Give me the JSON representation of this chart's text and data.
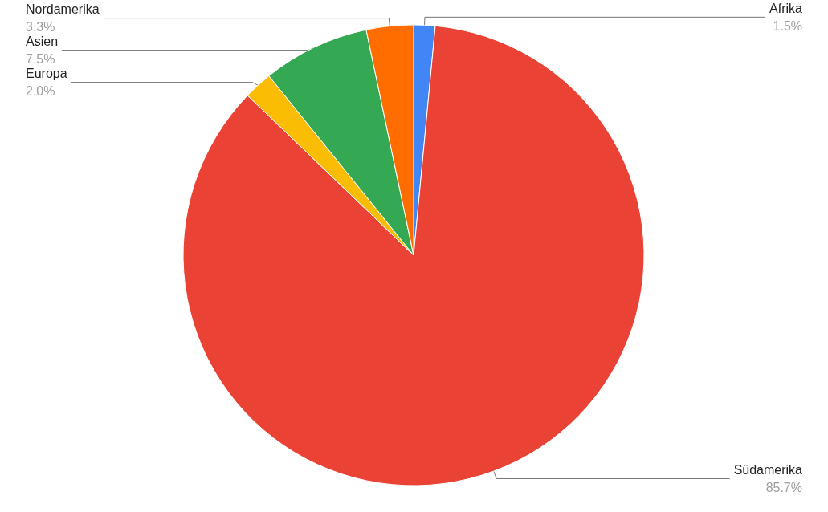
{
  "chart_data": {
    "type": "pie",
    "categories": [
      "Afrika",
      "Südamerika",
      "Europa",
      "Asien",
      "Nordamerika"
    ],
    "values": [
      1.5,
      85.7,
      2.0,
      7.5,
      3.3
    ],
    "value_labels": [
      "1.5%",
      "85.7%",
      "2.0%",
      "7.5%",
      "3.3%"
    ],
    "colors": [
      "#4285f4",
      "#ea4335",
      "#fbbc04",
      "#34a853",
      "#ff6d01"
    ],
    "legend": false
  }
}
